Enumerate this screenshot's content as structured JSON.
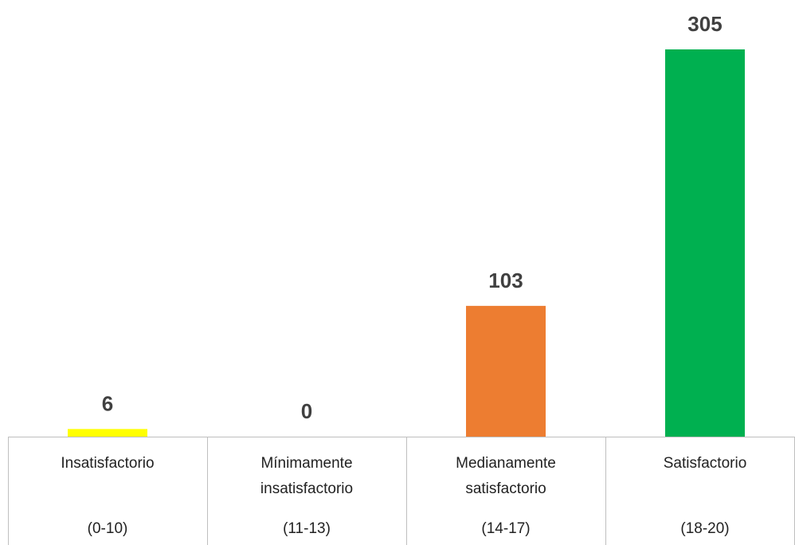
{
  "chart_data": {
    "type": "bar",
    "categories": [
      [
        "Insatisfactorio",
        "(0-10)"
      ],
      [
        "Mínimamente",
        "insatisfactorio",
        "(11-13)"
      ],
      [
        "Medianamente",
        "satisfactorio",
        "(14-17)"
      ],
      [
        "Satisfactorio",
        "(18-20)"
      ]
    ],
    "values": [
      6,
      0,
      103,
      305
    ],
    "colors": [
      "#ffff00",
      "#ed7d31",
      "#ed7d31",
      "#00b050"
    ],
    "ylim": [
      0,
      305
    ]
  }
}
